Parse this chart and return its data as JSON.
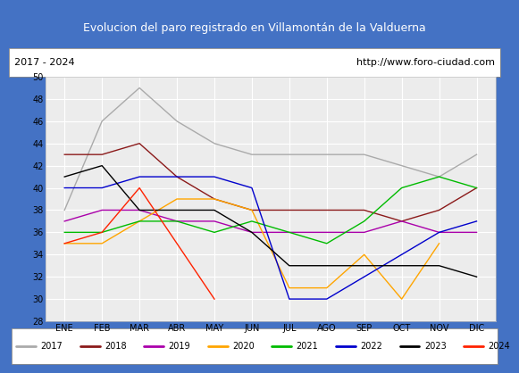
{
  "title": "Evolucion del paro registrado en Villamontán de la Valduerna",
  "subtitle_left": "2017 - 2024",
  "subtitle_right": "http://www.foro-ciudad.com",
  "title_bg": "#4472c4",
  "title_color": "white",
  "plot_bg": "#ececec",
  "ylim": [
    28,
    50
  ],
  "yticks": [
    28,
    30,
    32,
    34,
    36,
    38,
    40,
    42,
    44,
    46,
    48,
    50
  ],
  "months": [
    "ENE",
    "FEB",
    "MAR",
    "ABR",
    "MAY",
    "JUN",
    "JUL",
    "AGO",
    "SEP",
    "OCT",
    "NOV",
    "DIC"
  ],
  "series": {
    "2017": {
      "color": "#aaaaaa",
      "data": [
        38,
        46,
        49,
        46,
        44,
        43,
        43,
        43,
        43,
        42,
        41,
        43
      ]
    },
    "2018": {
      "color": "#8b1a1a",
      "data": [
        43,
        43,
        44,
        41,
        39,
        38,
        38,
        38,
        38,
        37,
        38,
        40
      ]
    },
    "2019": {
      "color": "#aa00aa",
      "data": [
        37,
        38,
        38,
        37,
        37,
        36,
        36,
        36,
        36,
        37,
        36,
        36
      ]
    },
    "2020": {
      "color": "#ffa500",
      "data": [
        35,
        35,
        37,
        39,
        39,
        38,
        31,
        31,
        34,
        30,
        35,
        null
      ]
    },
    "2021": {
      "color": "#00bb00",
      "data": [
        36,
        36,
        37,
        37,
        36,
        37,
        36,
        35,
        37,
        40,
        41,
        40
      ]
    },
    "2022": {
      "color": "#0000cc",
      "data": [
        40,
        40,
        41,
        41,
        41,
        40,
        30,
        30,
        32,
        34,
        36,
        37
      ]
    },
    "2023": {
      "color": "#000000",
      "data": [
        41,
        42,
        38,
        38,
        38,
        36,
        33,
        33,
        33,
        33,
        33,
        32
      ]
    },
    "2024": {
      "color": "#ff2200",
      "data": [
        35,
        36,
        40,
        35,
        30,
        null,
        null,
        null,
        null,
        null,
        null,
        null
      ]
    }
  },
  "legend_order": [
    "2017",
    "2018",
    "2019",
    "2020",
    "2021",
    "2022",
    "2023",
    "2024"
  ]
}
